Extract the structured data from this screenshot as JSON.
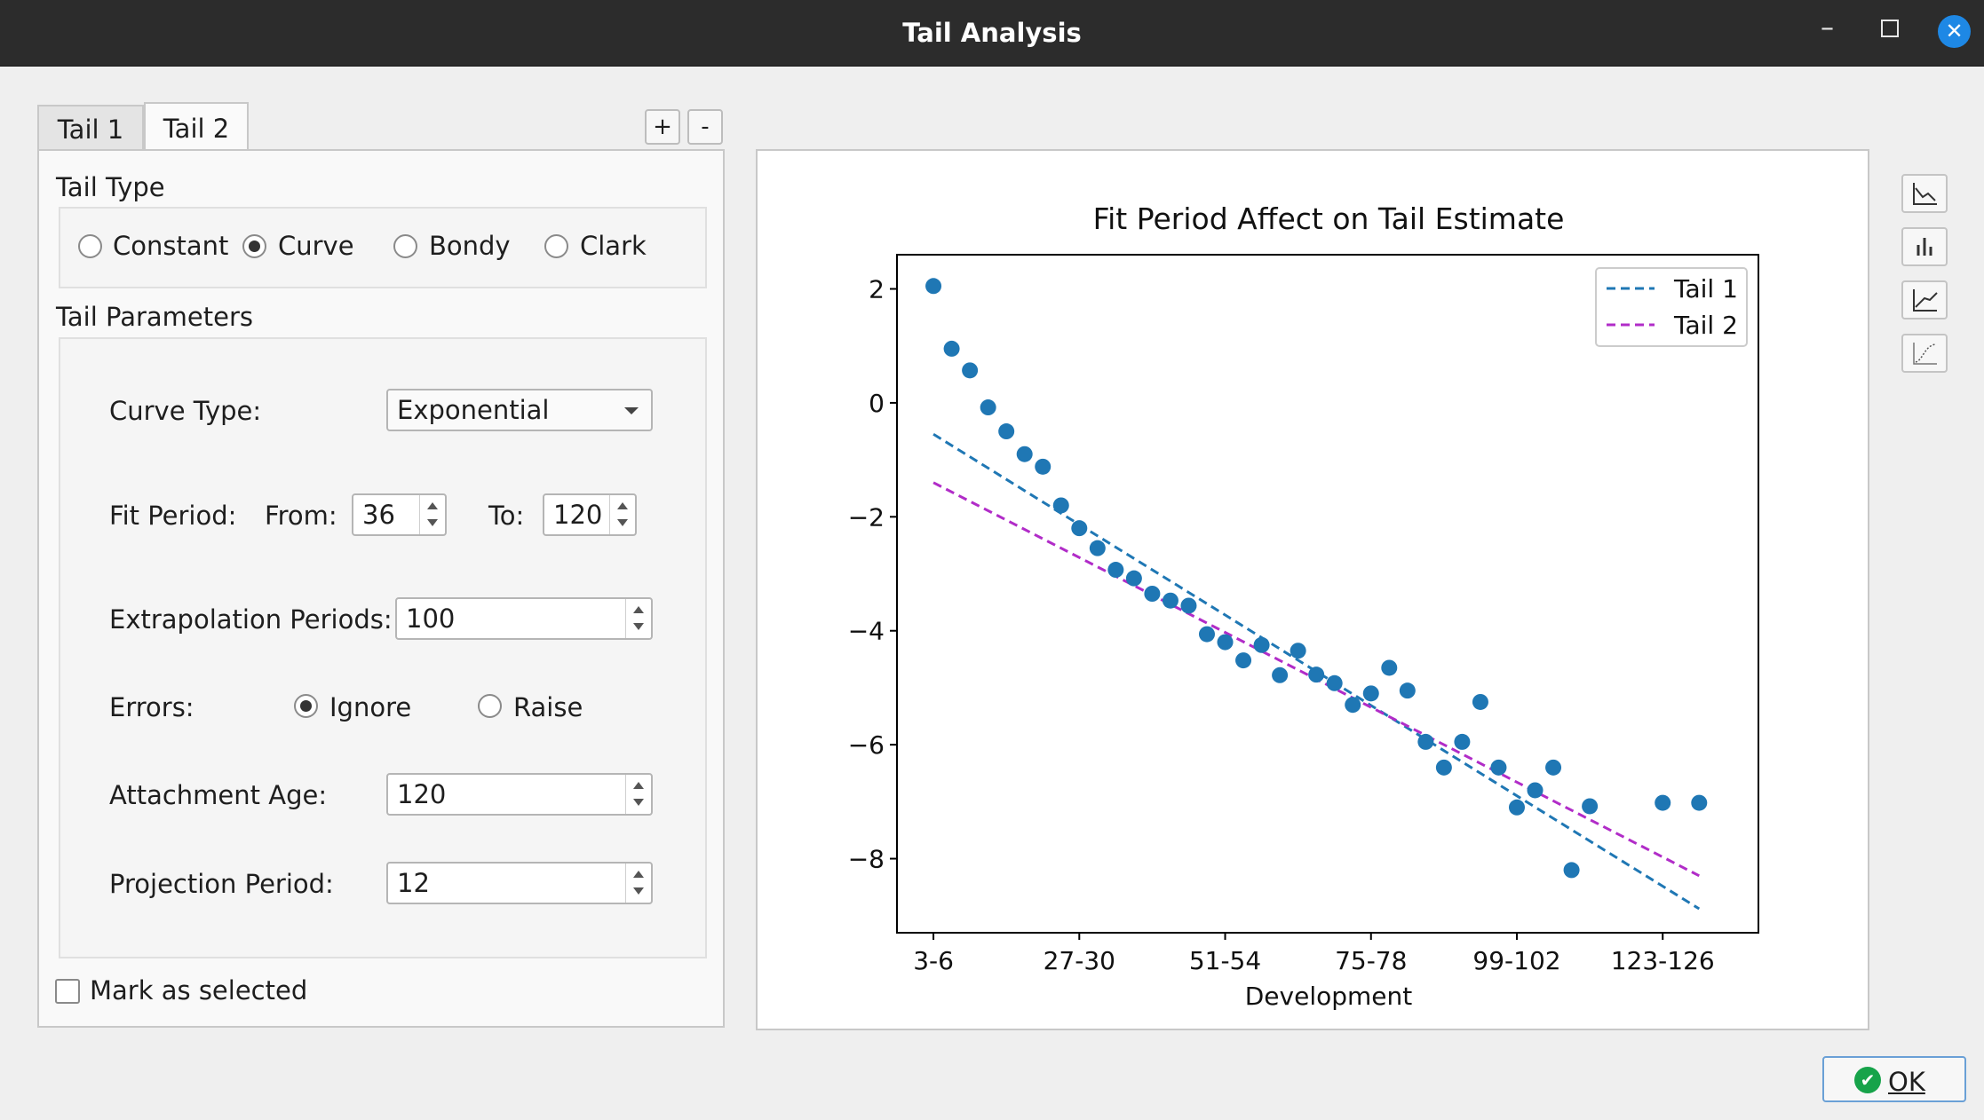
{
  "window": {
    "title": "Tail Analysis",
    "min": "–",
    "close": "✕"
  },
  "tabs": [
    {
      "label": "Tail 1"
    },
    {
      "label": "Tail 2"
    }
  ],
  "tab_controls": {
    "add": "+",
    "remove": "-"
  },
  "tail_type": {
    "title": "Tail Type",
    "options": [
      "Constant",
      "Curve",
      "Bondy",
      "Clark"
    ],
    "selected": "Curve"
  },
  "params": {
    "title": "Tail Parameters",
    "curve_type_label": "Curve Type:",
    "curve_type_value": "Exponential",
    "fit_period_label": "Fit Period:",
    "from_label": "From:",
    "from_value": "36",
    "to_label": "To:",
    "to_value": "120",
    "extrap_label": "Extrapolation Periods:",
    "extrap_value": "100",
    "errors_label": "Errors:",
    "errors_options": [
      "Ignore",
      "Raise"
    ],
    "errors_selected": "Ignore",
    "attach_label": "Attachment Age:",
    "attach_value": "120",
    "proj_label": "Projection Period:",
    "proj_value": "12"
  },
  "mark_selected": {
    "label": "Mark as selected",
    "checked": false
  },
  "toolbar_icons": [
    "line-chart-icon",
    "bar-chart-icon",
    "area-chart-icon",
    "curve-chart-icon"
  ],
  "ok": {
    "label": "OK"
  },
  "colors": {
    "tail1": "#1f77b4",
    "tail2": "#b12cc8",
    "points": "#1f77b4"
  },
  "chart_data": {
    "type": "scatter",
    "title": "Fit Period Affect on Tail Estimate",
    "xlabel": "Development",
    "ylabel": "",
    "x_tick_labels": [
      "3-6",
      "27-30",
      "51-54",
      "75-78",
      "99-102",
      "123-126"
    ],
    "x_tick_positions": [
      0,
      8,
      16,
      24,
      32,
      40
    ],
    "xlim": [
      -2,
      45.25
    ],
    "ylim": [
      -9.3,
      2.6
    ],
    "y_ticks": [
      2,
      0,
      -2,
      -4,
      -6,
      -8
    ],
    "y_tick_labels": [
      "2",
      "0",
      "−2",
      "−4",
      "−6",
      "−8"
    ],
    "grid": false,
    "legend_position": "top-right",
    "points": [
      [
        0,
        2.05
      ],
      [
        1,
        0.95
      ],
      [
        2,
        0.57
      ],
      [
        3,
        -0.08
      ],
      [
        4,
        -0.5
      ],
      [
        5,
        -0.9
      ],
      [
        6,
        -1.12
      ],
      [
        7,
        -1.8
      ],
      [
        8,
        -2.2
      ],
      [
        9,
        -2.55
      ],
      [
        10,
        -2.93
      ],
      [
        11,
        -3.08
      ],
      [
        12,
        -3.35
      ],
      [
        13,
        -3.47
      ],
      [
        14,
        -3.56
      ],
      [
        15,
        -4.06
      ],
      [
        16,
        -4.2
      ],
      [
        17,
        -4.52
      ],
      [
        18,
        -4.25
      ],
      [
        19,
        -4.78
      ],
      [
        20,
        -4.35
      ],
      [
        21,
        -4.77
      ],
      [
        22,
        -4.92
      ],
      [
        23,
        -5.3
      ],
      [
        24,
        -5.1
      ],
      [
        25,
        -4.65
      ],
      [
        26,
        -5.05
      ],
      [
        27,
        -5.95
      ],
      [
        28,
        -6.4
      ],
      [
        29,
        -5.95
      ],
      [
        30,
        -5.25
      ],
      [
        31,
        -6.4
      ],
      [
        32,
        -7.1
      ],
      [
        33,
        -6.8
      ],
      [
        34,
        -6.4
      ],
      [
        35,
        -8.2
      ],
      [
        36,
        -7.08
      ],
      [
        40,
        -7.02
      ],
      [
        42,
        -7.02
      ]
    ],
    "series": [
      {
        "name": "Tail 1",
        "x": [
          0,
          42
        ],
        "y": [
          -0.55,
          -8.88
        ]
      },
      {
        "name": "Tail 2",
        "x": [
          0,
          42
        ],
        "y": [
          -1.4,
          -8.3
        ]
      }
    ]
  }
}
